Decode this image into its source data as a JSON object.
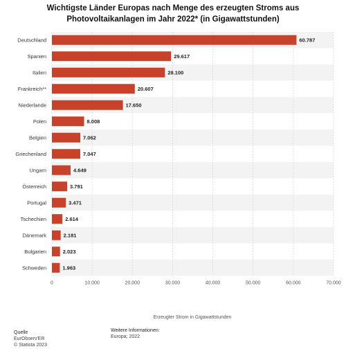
{
  "chart_data": {
    "type": "bar",
    "orientation": "horizontal",
    "title": "Wichtigste Länder Europas nach Menge des erzeugten Stroms aus Photovoltaikanlagen im Jahr 2022* (in Gigawattstunden)",
    "categories": [
      "Deutschland",
      "Spanien",
      "Italien",
      "Frankreich**",
      "Niederlande",
      "Polen",
      "Belgien",
      "Griechenland",
      "Ungarn",
      "Österreich",
      "Portugal",
      "Tschechien",
      "Dänemark",
      "Bulgarien",
      "Schweden"
    ],
    "values": [
      60787,
      29617,
      28100,
      20607,
      17650,
      8008,
      7062,
      7047,
      4649,
      3791,
      3471,
      2614,
      2181,
      2023,
      1963
    ],
    "value_labels": [
      "60.787",
      "29.617",
      "28.100",
      "20.607",
      "17.650",
      "8.008",
      "7.062",
      "7.047",
      "4.649",
      "3.791",
      "3.471",
      "2.614",
      "2.181",
      "2.023",
      "1.963"
    ],
    "xlabel": "Erzeugter Strom in Gigawattstunden",
    "ylabel": "",
    "xlim": [
      0,
      70000
    ],
    "xticks": [
      0,
      10000,
      20000,
      30000,
      40000,
      50000,
      60000,
      70000
    ],
    "xtick_labels": [
      "0",
      "10.000",
      "20.000",
      "30.000",
      "40.000",
      "50.000",
      "60.000",
      "70.000"
    ],
    "grid": true,
    "bar_color": "#c8412b"
  },
  "footer": {
    "source_heading": "Quelle",
    "source_lines": [
      "EurObserv'ER",
      "© Statista 2023"
    ],
    "info_heading": "Weitere Informationen:",
    "info_lines": [
      "Europa; 2022"
    ]
  }
}
